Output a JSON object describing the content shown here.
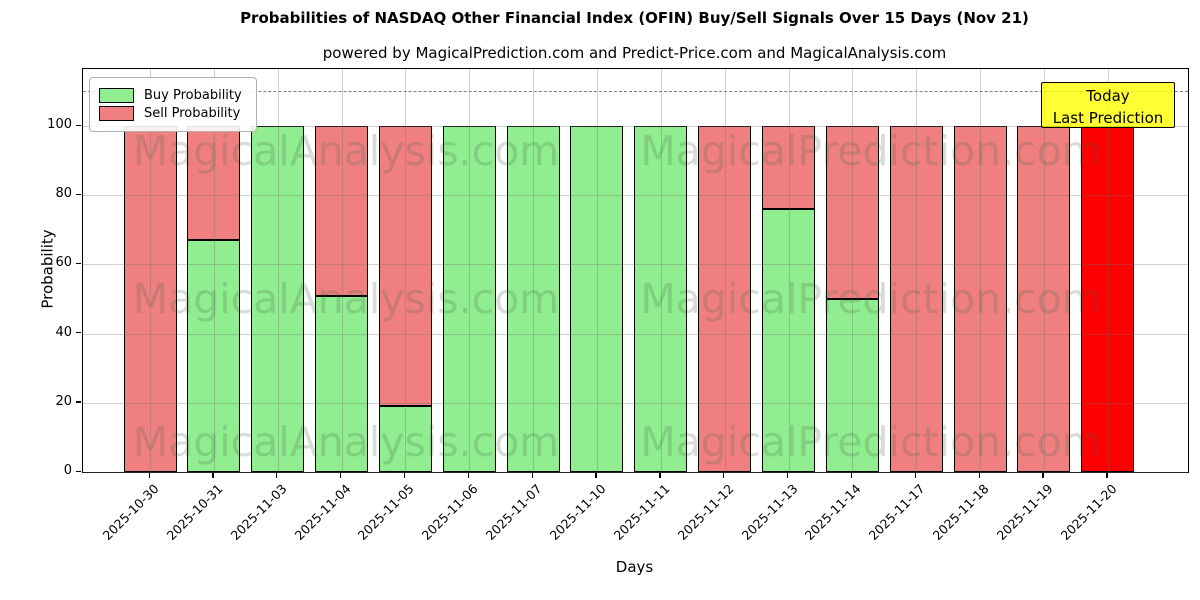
{
  "chart_data": {
    "type": "bar",
    "stacked": true,
    "title": "Probabilities of NASDAQ Other Financial Index (OFIN) Buy/Sell Signals Over 15 Days (Nov 21)",
    "subtitle": "powered by MagicalPrediction.com and Predict-Price.com and MagicalAnalysis.com",
    "xlabel": "Days",
    "ylabel": "Probability",
    "categories": [
      "2025-10-30",
      "2025-10-31",
      "2025-11-03",
      "2025-11-04",
      "2025-11-05",
      "2025-11-06",
      "2025-11-07",
      "2025-11-10",
      "2025-11-11",
      "2025-11-12",
      "2025-11-13",
      "2025-11-14",
      "2025-11-17",
      "2025-11-18",
      "2025-11-19",
      "2025-11-20"
    ],
    "series": [
      {
        "name": "Buy Probability",
        "color": "#90ee90",
        "values": [
          0,
          67,
          100,
          51,
          19,
          100,
          100,
          100,
          100,
          0,
          76,
          50,
          0,
          0,
          0,
          0
        ]
      },
      {
        "name": "Sell Probability",
        "color": "#f08080",
        "values": [
          100,
          33,
          0,
          49,
          81,
          0,
          0,
          0,
          0,
          100,
          24,
          50,
          100,
          100,
          100,
          100
        ]
      }
    ],
    "highlight_bar": {
      "category": "2025-11-20",
      "series": "Sell Probability",
      "color": "#ff0000"
    },
    "yticks": [
      0,
      20,
      40,
      60,
      80,
      100
    ],
    "ylim": [
      0,
      116.5
    ],
    "dashed_line_y": 110,
    "grid": true,
    "legend_position": "upper left",
    "annotation_box": {
      "lines": [
        "Today",
        "Last Prediction"
      ],
      "bg_color": "#ffff00",
      "position": "upper right"
    },
    "watermarks": {
      "left_text": "MagicalAnalysis.com",
      "right_text": "MagicalPrediction.com"
    }
  }
}
